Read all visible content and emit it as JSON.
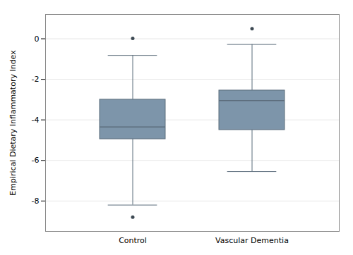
{
  "chart_data": {
    "type": "box",
    "ylabel": "Empirical Dietary Inflammatory Index",
    "categories": [
      "Control",
      "Vascular Dementia"
    ],
    "boxes": [
      {
        "median": -4.35,
        "q1": -4.95,
        "q3": -3.0,
        "whisker_low": -8.2,
        "whisker_high": -0.82,
        "outliers": [
          0.02,
          -8.8
        ]
      },
      {
        "median": -3.05,
        "q1": -4.5,
        "q3": -2.55,
        "whisker_low": -6.55,
        "whisker_high": -0.28,
        "outliers": [
          0.5
        ]
      }
    ],
    "color": "#7d95aa",
    "ylim": [
      -9.5,
      1.2
    ],
    "yticks": [
      0,
      -2,
      -4,
      -6,
      -8
    ],
    "grid": true
  }
}
